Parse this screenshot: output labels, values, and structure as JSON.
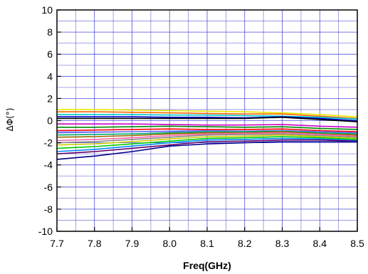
{
  "chart_data": {
    "type": "line",
    "xlabel": "Freq(GHz)",
    "ylabel": "ΔΦ(°)",
    "xlim": [
      7.7,
      8.5
    ],
    "ylim": [
      -10,
      10
    ],
    "xticks": [
      "7.7",
      "7.8",
      "7.9",
      "8.0",
      "8.1",
      "8.2",
      "8.3",
      "8.4",
      "8.5"
    ],
    "yticks": [
      "-10",
      "-8",
      "-6",
      "-4",
      "-2",
      "0",
      "2",
      "4",
      "6",
      "8",
      "10"
    ],
    "grid": true,
    "grid_color": "#3b3bd6",
    "x": [
      7.7,
      7.8,
      7.9,
      8.0,
      8.1,
      8.2,
      8.3,
      8.4,
      8.5
    ],
    "series": [
      {
        "color": "#e8e800",
        "values": [
          1.0,
          1.0,
          0.95,
          0.9,
          0.85,
          0.8,
          0.7,
          0.55,
          0.35
        ]
      },
      {
        "color": "#ff6600",
        "values": [
          0.8,
          0.8,
          0.75,
          0.7,
          0.65,
          0.6,
          0.6,
          0.4,
          0.2
        ]
      },
      {
        "color": "#00c8c8",
        "values": [
          0.55,
          0.55,
          0.55,
          0.5,
          0.5,
          0.45,
          0.4,
          0.3,
          0.15
        ]
      },
      {
        "color": "#0000cc",
        "values": [
          0.35,
          0.35,
          0.35,
          0.3,
          0.3,
          0.25,
          0.35,
          0.2,
          0.0
        ]
      },
      {
        "color": "#000000",
        "values": [
          0.2,
          0.2,
          0.2,
          0.2,
          0.2,
          0.2,
          0.3,
          0.1,
          -0.1
        ]
      },
      {
        "color": "#cc00cc",
        "values": [
          -0.3,
          -0.3,
          -0.3,
          -0.35,
          -0.4,
          -0.4,
          -0.35,
          -0.5,
          -0.6
        ]
      },
      {
        "color": "#008800",
        "values": [
          -0.6,
          -0.6,
          -0.55,
          -0.5,
          -0.55,
          -0.6,
          -0.55,
          -0.7,
          -0.8
        ]
      },
      {
        "color": "#ff0000",
        "values": [
          -0.9,
          -0.85,
          -0.8,
          -0.75,
          -0.8,
          -0.8,
          -0.75,
          -0.9,
          -1.0
        ]
      },
      {
        "color": "#6666ff",
        "values": [
          -1.1,
          -1.05,
          -1.0,
          -0.95,
          -0.9,
          -0.95,
          -0.9,
          -1.0,
          -1.1
        ]
      },
      {
        "color": "#00aa66",
        "values": [
          -1.3,
          -1.25,
          -1.2,
          -1.1,
          -1.0,
          -1.0,
          -0.95,
          -1.1,
          -1.2
        ]
      },
      {
        "color": "#996600",
        "values": [
          -1.5,
          -1.45,
          -1.35,
          -1.2,
          -1.1,
          -1.1,
          -1.0,
          -1.2,
          -1.3
        ]
      },
      {
        "color": "#ff66aa",
        "values": [
          -1.8,
          -1.7,
          -1.55,
          -1.35,
          -1.2,
          -1.15,
          -1.1,
          -1.25,
          -1.4
        ]
      },
      {
        "color": "#888888",
        "values": [
          -2.0,
          -1.9,
          -1.7,
          -1.5,
          -1.3,
          -1.25,
          -1.2,
          -1.35,
          -1.5
        ]
      },
      {
        "color": "#cccc00",
        "values": [
          -2.2,
          -2.1,
          -1.9,
          -1.65,
          -1.45,
          -1.4,
          -1.3,
          -1.45,
          -1.6
        ]
      },
      {
        "color": "#00cc00",
        "values": [
          -2.5,
          -2.35,
          -2.1,
          -1.85,
          -1.6,
          -1.55,
          -1.45,
          -1.55,
          -1.7
        ]
      },
      {
        "color": "#0088ff",
        "values": [
          -2.8,
          -2.6,
          -2.3,
          -2.0,
          -1.75,
          -1.7,
          -1.6,
          -1.65,
          -1.8
        ]
      },
      {
        "color": "#660066",
        "values": [
          -3.0,
          -2.8,
          -2.5,
          -2.2,
          -1.9,
          -1.85,
          -1.75,
          -1.75,
          -1.85
        ]
      },
      {
        "color": "#000088",
        "values": [
          -3.5,
          -3.2,
          -2.8,
          -2.3,
          -2.1,
          -2.0,
          -1.9,
          -1.9,
          -1.9
        ]
      }
    ]
  }
}
